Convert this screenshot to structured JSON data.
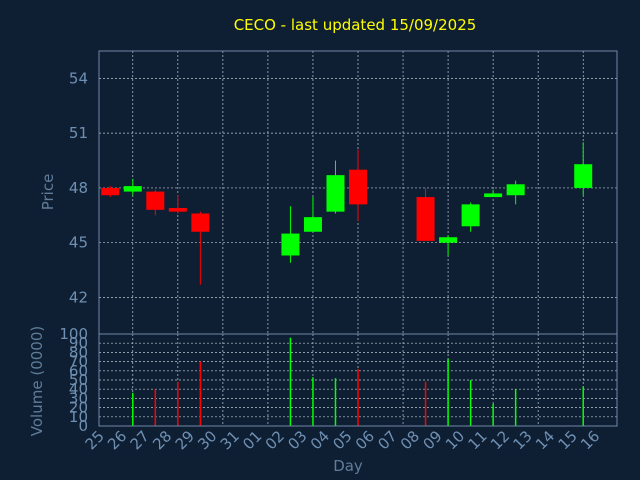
{
  "chart_data": [
    {
      "type": "candlestick",
      "title": "CECO - last updated 15/09/2025",
      "ylabel": "Price",
      "ylim": [
        40,
        55.5
      ],
      "yticks": [
        42,
        45,
        48,
        51,
        54
      ],
      "grid": true,
      "colors": {
        "up": "#00ff00",
        "down": "#ff0000"
      },
      "x": [
        "25",
        "26",
        "27",
        "28",
        "29",
        "30",
        "31",
        "01",
        "02",
        "03",
        "04",
        "05",
        "06",
        "07",
        "08",
        "09",
        "10",
        "11",
        "12",
        "13",
        "14",
        "15",
        "16"
      ],
      "candles": [
        {
          "day": "25",
          "open": 48.0,
          "high": 48.1,
          "low": 47.5,
          "close": 47.6
        },
        {
          "day": "26",
          "open": 47.8,
          "high": 48.5,
          "low": 47.6,
          "close": 48.1
        },
        {
          "day": "27",
          "open": 47.8,
          "high": 47.9,
          "low": 46.5,
          "close": 46.8
        },
        {
          "day": "28",
          "open": 46.9,
          "high": 47.6,
          "low": 46.6,
          "close": 46.7
        },
        {
          "day": "29",
          "open": 46.6,
          "high": 46.7,
          "low": 42.7,
          "close": 45.6
        },
        {
          "day": "02",
          "open": 44.3,
          "high": 47.0,
          "low": 43.9,
          "close": 45.5
        },
        {
          "day": "03",
          "open": 45.6,
          "high": 47.5,
          "low": 45.6,
          "close": 46.4
        },
        {
          "day": "04",
          "open": 46.7,
          "high": 49.5,
          "low": 46.6,
          "close": 48.7
        },
        {
          "day": "05",
          "open": 49.0,
          "high": 50.1,
          "low": 46.2,
          "close": 47.1
        },
        {
          "day": "08",
          "open": 47.5,
          "high": 48.0,
          "low": 45.1,
          "close": 45.1
        },
        {
          "day": "09",
          "open": 45.0,
          "high": 45.4,
          "low": 44.3,
          "close": 45.3
        },
        {
          "day": "10",
          "open": 45.9,
          "high": 47.2,
          "low": 45.6,
          "close": 47.1
        },
        {
          "day": "11",
          "open": 47.5,
          "high": 47.9,
          "low": 47.5,
          "close": 47.7
        },
        {
          "day": "12",
          "open": 47.6,
          "high": 48.4,
          "low": 47.1,
          "close": 48.2
        },
        {
          "day": "15",
          "open": 48.0,
          "high": 50.5,
          "low": 47.6,
          "close": 49.3
        }
      ]
    },
    {
      "type": "bar",
      "xlabel": "Day",
      "ylabel": "Volume (0000)",
      "ylim": [
        0,
        100
      ],
      "yticks": [
        0,
        10,
        20,
        30,
        40,
        50,
        60,
        70,
        80,
        90,
        100
      ],
      "grid": true,
      "colors": {
        "up": "#00ff00",
        "down": "#ff0000"
      },
      "categories": [
        "25",
        "26",
        "27",
        "28",
        "29",
        "30",
        "31",
        "01",
        "02",
        "03",
        "04",
        "05",
        "06",
        "07",
        "08",
        "09",
        "10",
        "11",
        "12",
        "13",
        "14",
        "15",
        "16"
      ],
      "bars": [
        {
          "day": "26",
          "value": 36,
          "dir": "up"
        },
        {
          "day": "27",
          "value": 40,
          "dir": "down"
        },
        {
          "day": "28",
          "value": 48,
          "dir": "down"
        },
        {
          "day": "29",
          "value": 70,
          "dir": "down"
        },
        {
          "day": "02",
          "value": 96,
          "dir": "up"
        },
        {
          "day": "03",
          "value": 53,
          "dir": "up"
        },
        {
          "day": "04",
          "value": 52,
          "dir": "up"
        },
        {
          "day": "05",
          "value": 62,
          "dir": "down"
        },
        {
          "day": "08",
          "value": 48,
          "dir": "down"
        },
        {
          "day": "09",
          "value": 73,
          "dir": "up"
        },
        {
          "day": "10",
          "value": 50,
          "dir": "up"
        },
        {
          "day": "11",
          "value": 24,
          "dir": "up"
        },
        {
          "day": "12",
          "value": 40,
          "dir": "up"
        },
        {
          "day": "15",
          "value": 43,
          "dir": "up"
        }
      ]
    }
  ]
}
